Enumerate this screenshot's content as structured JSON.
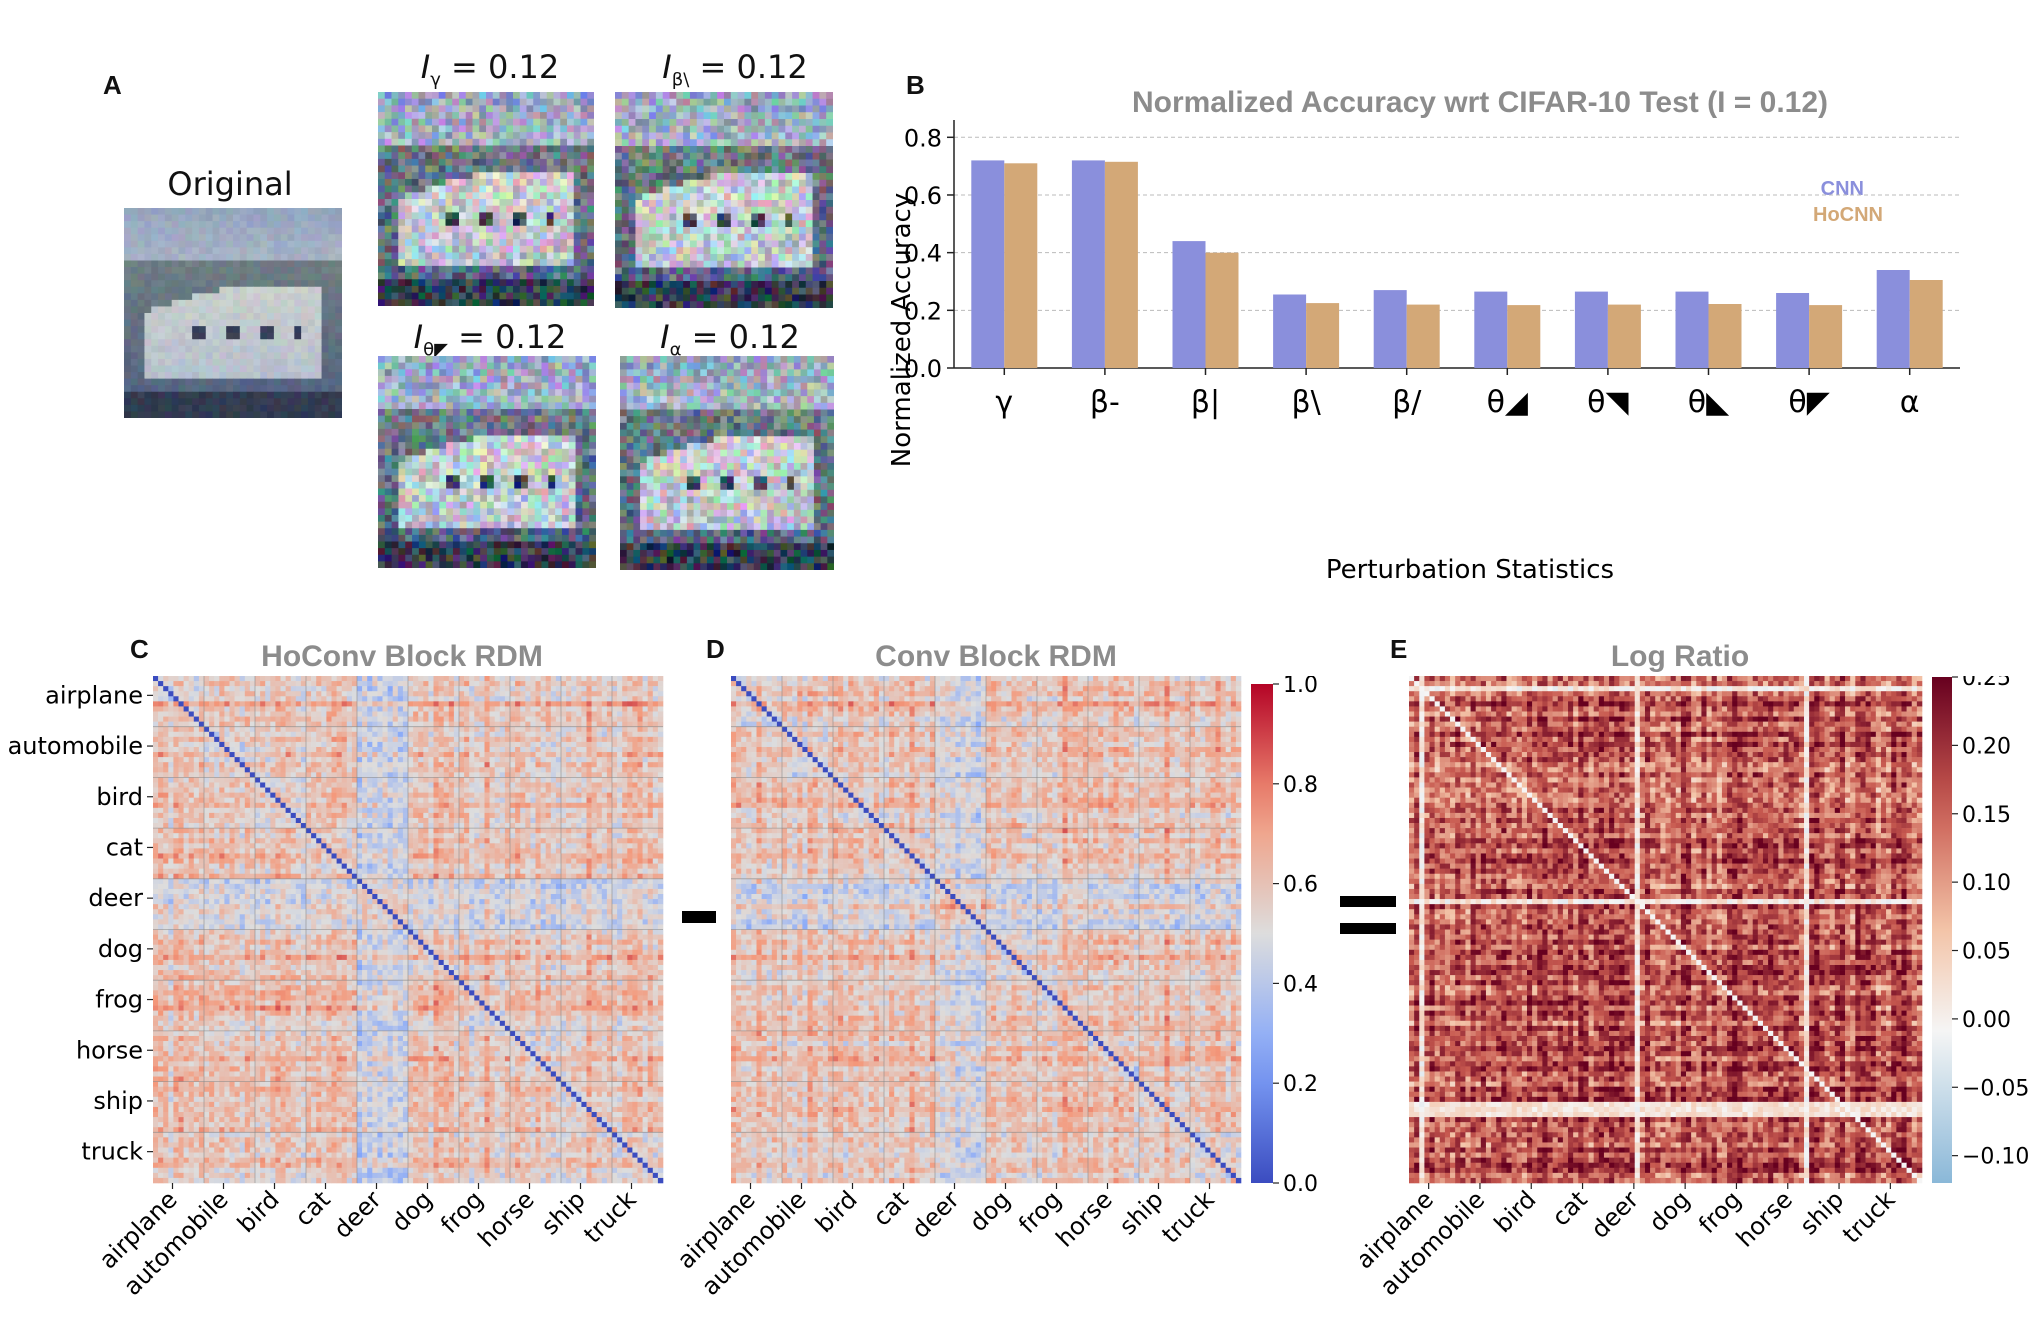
{
  "panel_a": {
    "letter": "A",
    "original_title": "Original",
    "images": [
      {
        "symbol": "γ",
        "value": "= 0.12"
      },
      {
        "symbol": "β\\",
        "value": "= 0.12"
      },
      {
        "symbol": "θ◤",
        "value": "= 0.12"
      },
      {
        "symbol": "α",
        "value": "= 0.12"
      }
    ]
  },
  "panel_b": {
    "letter": "B"
  },
  "panel_c": {
    "letter": "C"
  },
  "panel_d": {
    "letter": "D"
  },
  "panel_e": {
    "letter": "E"
  },
  "operators": {
    "minus": "minus",
    "equals": "equals"
  },
  "colors": {
    "cnn": "#8a8fdc",
    "hocnn": "#d3a877",
    "coolwarm_low": "#3b4cc0",
    "coolwarm_mid": "#dddddd",
    "coolwarm_high": "#b40426",
    "rdbu_low": "#8ab8d8",
    "rdbu_high": "#67001f",
    "title_gray": "#8c8c8c"
  },
  "chart_data": [
    {
      "id": "normalized-accuracy",
      "type": "bar",
      "title": "Normalized Accuracy wrt CIFAR-10 Test (I = 0.12)",
      "xlabel": "Perturbation Statistics",
      "ylabel": "Normalized Accuracy",
      "categories": [
        "γ",
        "β-",
        "β|",
        "β\\",
        "β/",
        "θ◢",
        "θ◥",
        "θ◣",
        "θ◤",
        "α"
      ],
      "series": [
        {
          "name": "CNN",
          "values": [
            0.72,
            0.72,
            0.44,
            0.255,
            0.27,
            0.265,
            0.265,
            0.265,
            0.26,
            0.34
          ]
        },
        {
          "name": "HoCNN",
          "values": [
            0.71,
            0.715,
            0.4,
            0.225,
            0.22,
            0.218,
            0.22,
            0.222,
            0.218,
            0.305
          ]
        }
      ],
      "ylim": [
        0,
        0.86
      ],
      "yticks": [
        "0.0",
        "0.2",
        "0.4",
        "0.6",
        "0.8"
      ],
      "grid": true,
      "legend": "top-right"
    },
    {
      "id": "hoconv-rdm",
      "type": "heatmap",
      "title": "HoConv Block RDM",
      "row_labels": [
        "airplane",
        "automobile",
        "bird",
        "cat",
        "deer",
        "dog",
        "frog",
        "horse",
        "ship",
        "truck"
      ],
      "col_labels": [
        "airplane",
        "automobile",
        "bird",
        "cat",
        "deer",
        "dog",
        "frog",
        "horse",
        "ship",
        "truck"
      ],
      "colormap": "coolwarm"
    },
    {
      "id": "conv-rdm",
      "type": "heatmap",
      "title": "Conv Block RDM",
      "row_labels": [],
      "col_labels": [
        "airplane",
        "automobile",
        "bird",
        "cat",
        "deer",
        "dog",
        "frog",
        "horse",
        "ship",
        "truck"
      ],
      "colormap": "coolwarm",
      "colorbar_range": [
        0.0,
        1.0
      ],
      "colorbar_ticks": [
        "0.0",
        "0.2",
        "0.4",
        "0.6",
        "0.8",
        "1.0"
      ]
    },
    {
      "id": "log-ratio",
      "type": "heatmap",
      "title": "Log Ratio",
      "row_labels": [],
      "col_labels": [
        "airplane",
        "automobile",
        "bird",
        "cat",
        "deer",
        "dog",
        "frog",
        "horse",
        "ship",
        "truck"
      ],
      "colormap": "RdBu_r",
      "colorbar_range": [
        -0.12,
        0.25
      ],
      "colorbar_ticks": [
        "−0.10",
        "−0.05",
        "0.00",
        "0.05",
        "0.10",
        "0.15",
        "0.20",
        "0.25"
      ]
    }
  ]
}
